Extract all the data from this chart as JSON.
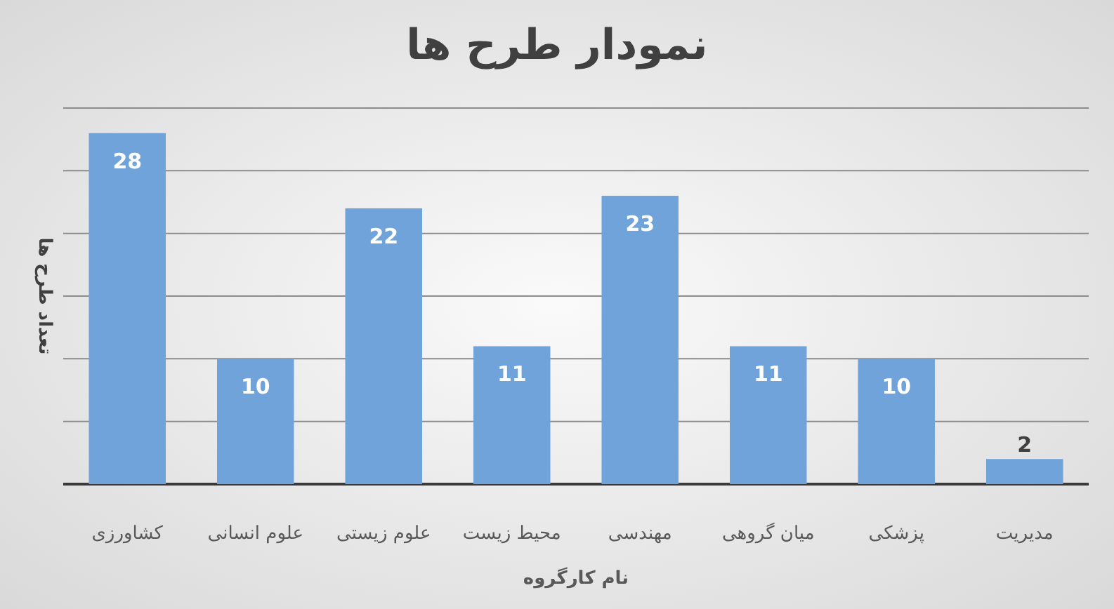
{
  "chart_data": {
    "type": "bar",
    "title": "نمودار طرح ها",
    "xlabel": "نام کارگروه",
    "ylabel": "تعداد طرح ها",
    "categories": [
      "کشاورزی",
      "علوم انسانی",
      "علوم زیستی",
      "محیط زیست",
      "مهندسی",
      "میان گروهی",
      "پزشکی",
      "مدیریت"
    ],
    "values": [
      28,
      10,
      22,
      11,
      23,
      11,
      10,
      2
    ],
    "color": "#6fa3d9",
    "ylim": [
      0,
      30
    ],
    "yticks": [
      {
        "value": 0,
        "label": null
      },
      {
        "value": 5,
        "label": null
      },
      {
        "value": 10,
        "label": null
      },
      {
        "value": 15,
        "label": null
      },
      {
        "value": 20,
        "label": null
      },
      {
        "value": 25,
        "label": null
      },
      {
        "value": 30,
        "label": null
      }
    ],
    "tick_labels": "x",
    "grid": "y",
    "data_labels": true
  }
}
